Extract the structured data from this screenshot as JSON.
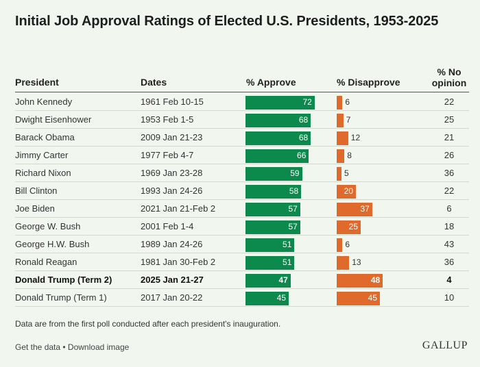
{
  "title": "Initial Job Approval Ratings of Elected U.S. Presidents, 1953-2025",
  "columns": {
    "president": "President",
    "dates": "Dates",
    "approve": "% Approve",
    "disapprove": "% Disapprove",
    "no_opinion": "% No opinion"
  },
  "colors": {
    "approve": "#0c8a4d",
    "disapprove": "#e06a2c",
    "background": "#f1f6ef"
  },
  "chart_data": {
    "type": "bar",
    "title": "Initial Job Approval Ratings of Elected U.S. Presidents, 1953-2025",
    "categories": [
      "John Kennedy",
      "Dwight Eisenhower",
      "Barack Obama",
      "Jimmy Carter",
      "Richard Nixon",
      "Bill Clinton",
      "Joe Biden",
      "George W. Bush",
      "George H.W. Bush",
      "Ronald Reagan",
      "Donald Trump (Term 2)",
      "Donald Trump (Term 1)"
    ],
    "dates": [
      "1961 Feb 10-15",
      "1953 Feb 1-5",
      "2009 Jan 21-23",
      "1977 Feb 4-7",
      "1969 Jan 23-28",
      "1993 Jan 24-26",
      "2021 Jan 21-Feb 2",
      "2001 Feb 1-4",
      "1989 Jan 24-26",
      "1981 Jan 30-Feb 2",
      "2025 Jan 21-27",
      "2017 Jan 20-22"
    ],
    "series": [
      {
        "name": "% Approve",
        "values": [
          72,
          68,
          68,
          66,
          59,
          58,
          57,
          57,
          51,
          51,
          47,
          45
        ]
      },
      {
        "name": "% Disapprove",
        "values": [
          6,
          7,
          12,
          8,
          5,
          20,
          37,
          25,
          6,
          13,
          48,
          45
        ]
      },
      {
        "name": "% No opinion",
        "values": [
          22,
          25,
          21,
          26,
          36,
          22,
          6,
          18,
          43,
          36,
          4,
          10
        ]
      }
    ],
    "highlight_index": 10
  },
  "footnote": "Data are from the first poll conducted after each president's inauguration.",
  "links": {
    "get_data": "Get the data",
    "separator": " • ",
    "download": "Download image"
  },
  "logo": "GALLUP"
}
